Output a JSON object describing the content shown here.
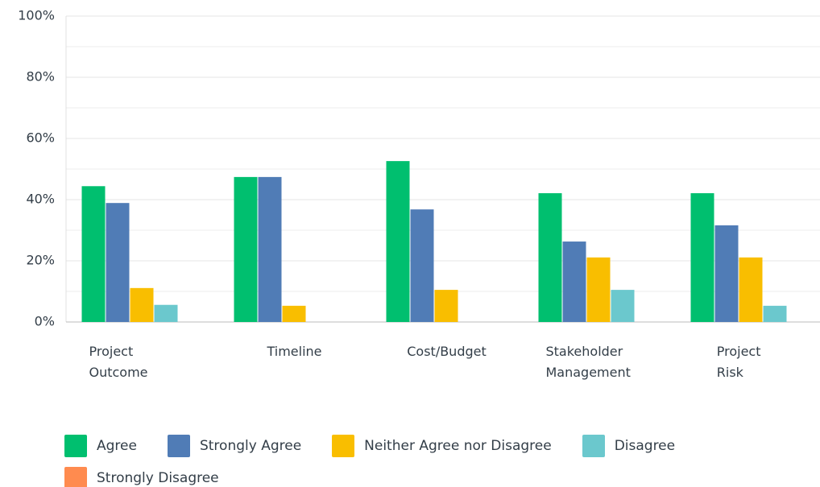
{
  "chart_data": {
    "type": "bar",
    "categories": [
      "Project Outcome",
      "Timeline",
      "Cost/Budget",
      "Stakeholder Management",
      "Project Risk"
    ],
    "series": [
      {
        "name": "Agree",
        "color": "#00bf6f",
        "values": [
          44.4,
          47.4,
          52.6,
          42.1,
          42.1
        ]
      },
      {
        "name": "Strongly Agree",
        "color": "#507cb6",
        "values": [
          38.9,
          47.4,
          36.8,
          26.3,
          31.6
        ]
      },
      {
        "name": "Neither Agree nor Disagree",
        "color": "#f9be00",
        "values": [
          11.1,
          5.3,
          10.5,
          21.1,
          21.1
        ]
      },
      {
        "name": "Disagree",
        "color": "#6bc8cd",
        "values": [
          5.6,
          0,
          0,
          10.5,
          5.3
        ]
      },
      {
        "name": "Strongly Disagree",
        "color": "#ff8b4f",
        "values": [
          0,
          0,
          0,
          0,
          0
        ]
      }
    ],
    "ylim": [
      0,
      100
    ],
    "yticks": [
      {
        "value": 0,
        "label": "0%"
      },
      {
        "value": 20,
        "label": "20%"
      },
      {
        "value": 40,
        "label": "40%"
      },
      {
        "value": 60,
        "label": "60%"
      },
      {
        "value": 80,
        "label": "80%"
      },
      {
        "value": 100,
        "label": "100%"
      }
    ],
    "minor_yticks": [
      10,
      30,
      50,
      70,
      90
    ],
    "grid": true,
    "legend": "bottom"
  }
}
